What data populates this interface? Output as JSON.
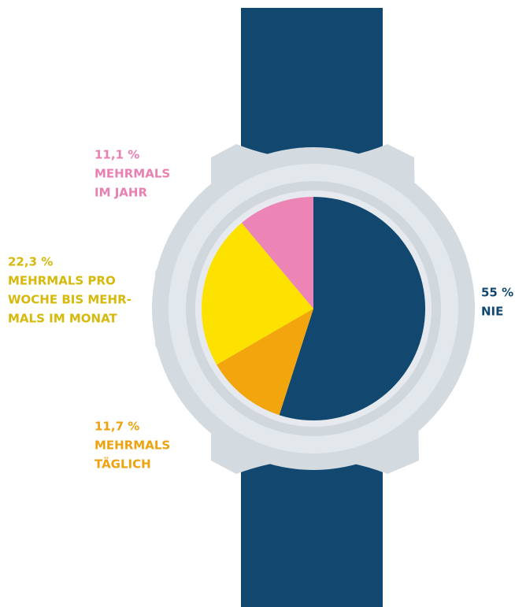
{
  "chart_data": {
    "type": "pie",
    "categories": [
      [
        "NIE"
      ],
      [
        "MEHRMALS",
        "TÄGLICH"
      ],
      [
        "MEHRMALS PRO",
        "WOCHE BIS MEHR-",
        "MALS IM MONAT"
      ],
      [
        "MEHRMALS",
        "IM JAHR"
      ]
    ],
    "values": [
      55,
      11.7,
      22.3,
      11.1
    ],
    "value_labels": [
      "55 %",
      "11,7 %",
      "22,3 %",
      "11,1 %"
    ],
    "colors": [
      "#124870",
      "#f2a50c",
      "#fde200",
      "#ec84b5"
    ],
    "label_colors": [
      "#124870",
      "#eea20e",
      "#d6b90a",
      "#ea7fb2"
    ]
  }
}
